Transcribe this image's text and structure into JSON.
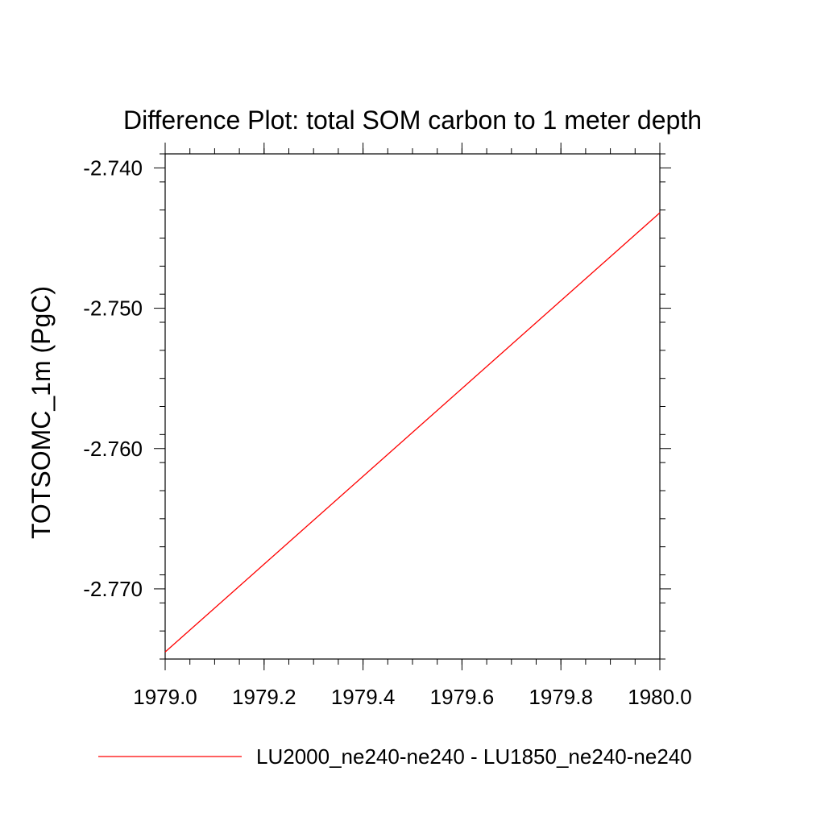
{
  "chart_data": {
    "type": "line",
    "title": "Difference Plot: total SOM carbon to 1 meter depth",
    "xlabel": "",
    "ylabel": "TOTSOMC_1m  (PgC)",
    "xlim": [
      1979.0,
      1980.0
    ],
    "ylim": [
      -2.775,
      -2.739
    ],
    "x_ticks": [
      "1979.0",
      "1979.2",
      "1979.4",
      "1979.6",
      "1979.8",
      "1980.0"
    ],
    "y_ticks": [
      "-2.740",
      "-2.750",
      "-2.760",
      "-2.770"
    ],
    "grid": false,
    "legend_position": "bottom",
    "series": [
      {
        "name": "LU2000_ne240-ne240 - LU1850_ne240-ne240",
        "color": "#ff0000",
        "x": [
          1979.0,
          1980.0
        ],
        "y": [
          -2.7745,
          -2.7432
        ]
      }
    ]
  }
}
